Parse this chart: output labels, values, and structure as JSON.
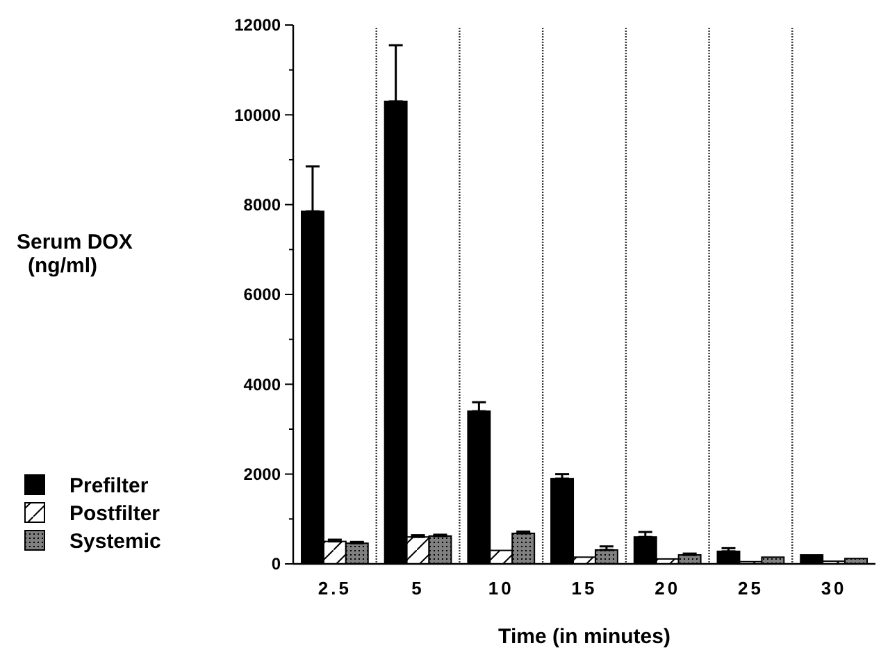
{
  "chart_data": {
    "type": "bar",
    "xlabel": "Time (in minutes)",
    "ylabel": "Serum DOX\n(ng/ml)",
    "categories": [
      "2.5",
      "5",
      "10",
      "15",
      "20",
      "25",
      "30"
    ],
    "series": [
      {
        "name": "Prefilter",
        "color": "#000000",
        "values": [
          7850,
          10300,
          3400,
          1900,
          600,
          280,
          200
        ],
        "errors": [
          [
            7850,
            8850
          ],
          [
            10300,
            11550
          ],
          [
            3400,
            3600
          ],
          [
            1900,
            2000
          ],
          [
            600,
            710
          ],
          [
            280,
            350
          ],
          null
        ]
      },
      {
        "name": "Postfilter",
        "color": "#ffffff",
        "values": [
          500,
          600,
          300,
          150,
          110,
          50,
          60
        ],
        "errors": [
          [
            500,
            540
          ],
          [
            600,
            640
          ],
          null,
          null,
          null,
          null,
          null
        ]
      },
      {
        "name": "Systemic",
        "color": "#808080",
        "values": [
          460,
          620,
          680,
          310,
          200,
          150,
          120
        ],
        "errors": [
          [
            460,
            490
          ],
          [
            620,
            650
          ],
          [
            680,
            720
          ],
          [
            310,
            390
          ],
          [
            200,
            230
          ],
          null,
          null
        ]
      }
    ],
    "ylim": [
      0,
      12000
    ],
    "yticks": [
      0,
      {
        "value": 1000,
        "label": null
      },
      2000,
      {
        "value": 3000,
        "label": null
      },
      4000,
      {
        "value": 5000,
        "label": null
      },
      6000,
      {
        "value": 7000,
        "label": null
      },
      8000,
      {
        "value": 9000,
        "label": null
      },
      10000,
      {
        "value": 11000,
        "label": null
      },
      12000
    ],
    "grid": "x",
    "legend": "left"
  }
}
